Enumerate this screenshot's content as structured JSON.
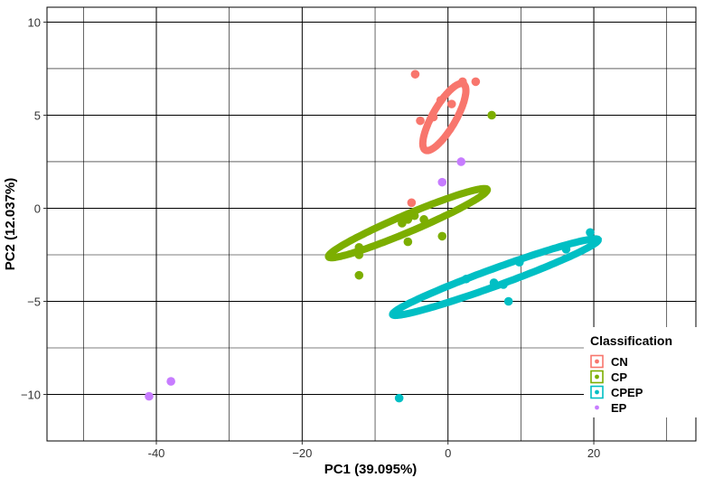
{
  "chart_data": {
    "type": "scatter",
    "xlabel": "PC1 (39.095%)",
    "ylabel": "PC2 (12.037%)",
    "xlim": [
      -55,
      34
    ],
    "ylim": [
      -12.5,
      10.8
    ],
    "x_ticks": [
      -40,
      -20,
      0,
      20
    ],
    "y_ticks": [
      -10,
      -5,
      0,
      5,
      10
    ],
    "x_tick_labels": [
      "-40",
      "−20",
      "0",
      "20"
    ],
    "y_tick_labels": [
      "−10",
      "−5",
      "0",
      "5",
      "10"
    ],
    "grid": true,
    "legend_position": "bottom-right",
    "legend_title": "Classification",
    "series": [
      {
        "name": "CN",
        "color": "#f8766d",
        "points": [
          [
            -4.5,
            7.2
          ],
          [
            -1.0,
            5.8
          ],
          [
            0.5,
            5.6
          ],
          [
            2.0,
            6.8
          ],
          [
            3.8,
            6.8
          ],
          [
            -3.8,
            4.7
          ],
          [
            -2.0,
            4.9
          ],
          [
            -5.0,
            0.3
          ]
        ],
        "ellipse": {
          "cx": -0.5,
          "cy": 4.9,
          "rx": 11.5,
          "ry": 3.5,
          "angle_deg": 60
        }
      },
      {
        "name": "CP",
        "color": "#7cae00",
        "points": [
          [
            6.0,
            5.0
          ],
          [
            -4.6,
            -0.4
          ],
          [
            -5.5,
            -0.6
          ],
          [
            -6.3,
            -0.8
          ],
          [
            -3.3,
            -0.6
          ],
          [
            -0.8,
            -1.5
          ],
          [
            -5.5,
            -1.8
          ],
          [
            -12.2,
            -2.1
          ],
          [
            -12.2,
            -2.5
          ],
          [
            -12.2,
            -3.6
          ]
        ],
        "ellipse": {
          "cx": -5.5,
          "cy": -0.8,
          "rx": 26.0,
          "ry": 2.6,
          "angle_deg": 23
        }
      },
      {
        "name": "CPEP",
        "color": "#00bfc4",
        "points": [
          [
            19.5,
            -1.3
          ],
          [
            16.2,
            -2.2
          ],
          [
            9.8,
            -2.9
          ],
          [
            2.5,
            -3.8
          ],
          [
            6.3,
            -4.0
          ],
          [
            7.6,
            -4.1
          ],
          [
            8.3,
            -5.0
          ],
          [
            -6.7,
            -10.2
          ]
        ],
        "ellipse": {
          "cx": 6.5,
          "cy": -3.7,
          "rx": 33.0,
          "ry": 2.6,
          "angle_deg": 20
        }
      },
      {
        "name": "EP",
        "color": "#c77cff",
        "points": [
          [
            -41.0,
            -10.1
          ],
          [
            -38.0,
            -9.3
          ],
          [
            -0.8,
            1.4
          ],
          [
            1.8,
            2.5
          ]
        ]
      }
    ]
  }
}
